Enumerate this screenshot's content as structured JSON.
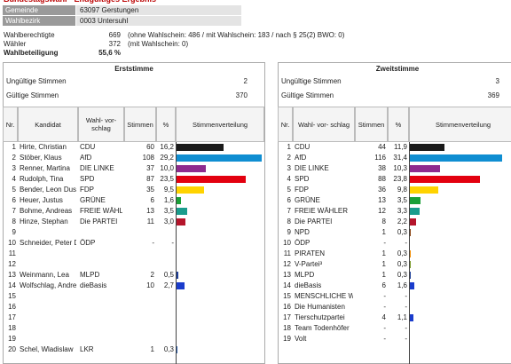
{
  "page_title": "Bundestagswahl - Endgültiges Ergebnis",
  "header": {
    "rows": [
      {
        "label": "Gemeinde",
        "value": "63097  Gerstungen"
      },
      {
        "label": "Wahlbezirk",
        "value": "0003  Untersuhl"
      }
    ]
  },
  "stats": [
    {
      "label": "Wahlberechtigte",
      "value": "669",
      "note": "(ohne Wahlschein: 486 / mit Wahlschein: 183 / nach § 25(2) BWO: 0)"
    },
    {
      "label": "Wähler",
      "value": "372",
      "note": "(mit Wahlschein: 0)"
    },
    {
      "label": "Wahlbeteiligung",
      "value": "55,6 %"
    }
  ],
  "erststimme": {
    "title": "Erststimme",
    "invalid_label": "Ungültige Stimmen",
    "invalid": "2",
    "valid_label": "Gültige Stimmen",
    "valid": "370",
    "headers": {
      "nr": "Nr.",
      "kandidat": "Kandidat",
      "wahlvorschlag": "Wahl- vor- schlag",
      "stimmen": "Stimmen",
      "pct": "%",
      "verteilung": "Stimmenverteilung"
    },
    "rows": [
      {
        "nr": "1",
        "kandidat": "Hirte, Christian",
        "partei": "CDU",
        "stimmen": "60",
        "pct": "16,2",
        "color": "#1a1a1a"
      },
      {
        "nr": "2",
        "kandidat": "Stöber, Klaus",
        "partei": "AfD",
        "stimmen": "108",
        "pct": "29,2",
        "color": "#0f8ed2"
      },
      {
        "nr": "3",
        "kandidat": "Renner, Martina",
        "partei": "DIE LINKE",
        "stimmen": "37",
        "pct": "10,0",
        "color": "#8e2b8e"
      },
      {
        "nr": "4",
        "kandidat": "Rudolph, Tina",
        "partei": "SPD",
        "stimmen": "87",
        "pct": "23,5",
        "color": "#e3000f"
      },
      {
        "nr": "5",
        "kandidat": "Bender, Leon Dustin",
        "partei": "FDP",
        "stimmen": "35",
        "pct": "9,5",
        "color": "#ffd300"
      },
      {
        "nr": "6",
        "kandidat": "Heuer, Justus",
        "partei": "GRÜNE",
        "stimmen": "6",
        "pct": "1,6",
        "color": "#1aa037"
      },
      {
        "nr": "7",
        "kandidat": "Bohme, Andreas",
        "partei": "FREIE WÄHLER",
        "stimmen": "13",
        "pct": "3,5",
        "color": "#1a9c8c"
      },
      {
        "nr": "8",
        "kandidat": "Hinze, Stephan",
        "partei": "Die PARTEI",
        "stimmen": "11",
        "pct": "3,0",
        "color": "#b5152b"
      },
      {
        "nr": "9"
      },
      {
        "nr": "10",
        "kandidat": "Schneider, Peter Dr.",
        "partei": "ÖDP",
        "stimmen": "-",
        "pct": "-"
      },
      {
        "nr": "11"
      },
      {
        "nr": "12"
      },
      {
        "nr": "13",
        "kandidat": "Weinmann, Lea",
        "partei": "MLPD",
        "stimmen": "2",
        "pct": "0,5",
        "color": "#1f3f99"
      },
      {
        "nr": "14",
        "kandidat": "Wolfschlag, Andreas",
        "partei": "dieBasis",
        "stimmen": "10",
        "pct": "2,7",
        "color": "#1a3ccc"
      },
      {
        "nr": "15"
      },
      {
        "nr": "16"
      },
      {
        "nr": "17"
      },
      {
        "nr": "18"
      },
      {
        "nr": "19"
      },
      {
        "nr": "20",
        "kandidat": "Schel, Wladislaw",
        "partei": "LKR",
        "stimmen": "1",
        "pct": "0,3",
        "color": "#2a5caa"
      }
    ]
  },
  "zweitstimme": {
    "title": "Zweitstimme",
    "invalid_label": "Ungültige Stimmen",
    "invalid": "3",
    "valid_label": "Gültige Stimmen",
    "valid": "369",
    "headers": {
      "nr": "Nr.",
      "wahlvorschlag": "Wahl- vor- schlag",
      "stimmen": "Stimmen",
      "pct": "%",
      "verteilung": "Stimmenverteilung"
    },
    "rows": [
      {
        "nr": "1",
        "partei": "CDU",
        "stimmen": "44",
        "pct": "11,9",
        "color": "#1a1a1a"
      },
      {
        "nr": "2",
        "partei": "AfD",
        "stimmen": "116",
        "pct": "31,4",
        "color": "#0f8ed2"
      },
      {
        "nr": "3",
        "partei": "DIE LINKE",
        "stimmen": "38",
        "pct": "10,3",
        "color": "#8e2b8e"
      },
      {
        "nr": "4",
        "partei": "SPD",
        "stimmen": "88",
        "pct": "23,8",
        "color": "#e3000f"
      },
      {
        "nr": "5",
        "partei": "FDP",
        "stimmen": "36",
        "pct": "9,8",
        "color": "#ffd300"
      },
      {
        "nr": "6",
        "partei": "GRÜNE",
        "stimmen": "13",
        "pct": "3,5",
        "color": "#1aa037"
      },
      {
        "nr": "7",
        "partei": "FREIE WÄHLER",
        "stimmen": "12",
        "pct": "3,3",
        "color": "#1a9c8c"
      },
      {
        "nr": "8",
        "partei": "Die PARTEI",
        "stimmen": "8",
        "pct": "2,2",
        "color": "#b5152b"
      },
      {
        "nr": "9",
        "partei": "NPD",
        "stimmen": "1",
        "pct": "0,3",
        "color": "#8b4513"
      },
      {
        "nr": "10",
        "partei": "ÖDP",
        "stimmen": "-",
        "pct": "-"
      },
      {
        "nr": "11",
        "partei": "PIRATEN",
        "stimmen": "1",
        "pct": "0,3",
        "color": "#f28c00"
      },
      {
        "nr": "12",
        "partei": "V-Partei³",
        "stimmen": "1",
        "pct": "0,3",
        "color": "#7a9a2a"
      },
      {
        "nr": "13",
        "partei": "MLPD",
        "stimmen": "1",
        "pct": "0,3",
        "color": "#1f3f99"
      },
      {
        "nr": "14",
        "partei": "dieBasis",
        "stimmen": "6",
        "pct": "1,6",
        "color": "#1a3ccc"
      },
      {
        "nr": "15",
        "partei": "MENSCHLICHE WELT",
        "stimmen": "-",
        "pct": "-"
      },
      {
        "nr": "16",
        "partei": "Die Humanisten",
        "stimmen": "-",
        "pct": "-"
      },
      {
        "nr": "17",
        "partei": "Tierschutzpartei",
        "stimmen": "4",
        "pct": "1,1",
        "color": "#1a3ccc"
      },
      {
        "nr": "18",
        "partei": "Team Todenhöfer",
        "stimmen": "-",
        "pct": "-"
      },
      {
        "nr": "19",
        "partei": "Volt",
        "stimmen": "-",
        "pct": "-"
      }
    ]
  }
}
